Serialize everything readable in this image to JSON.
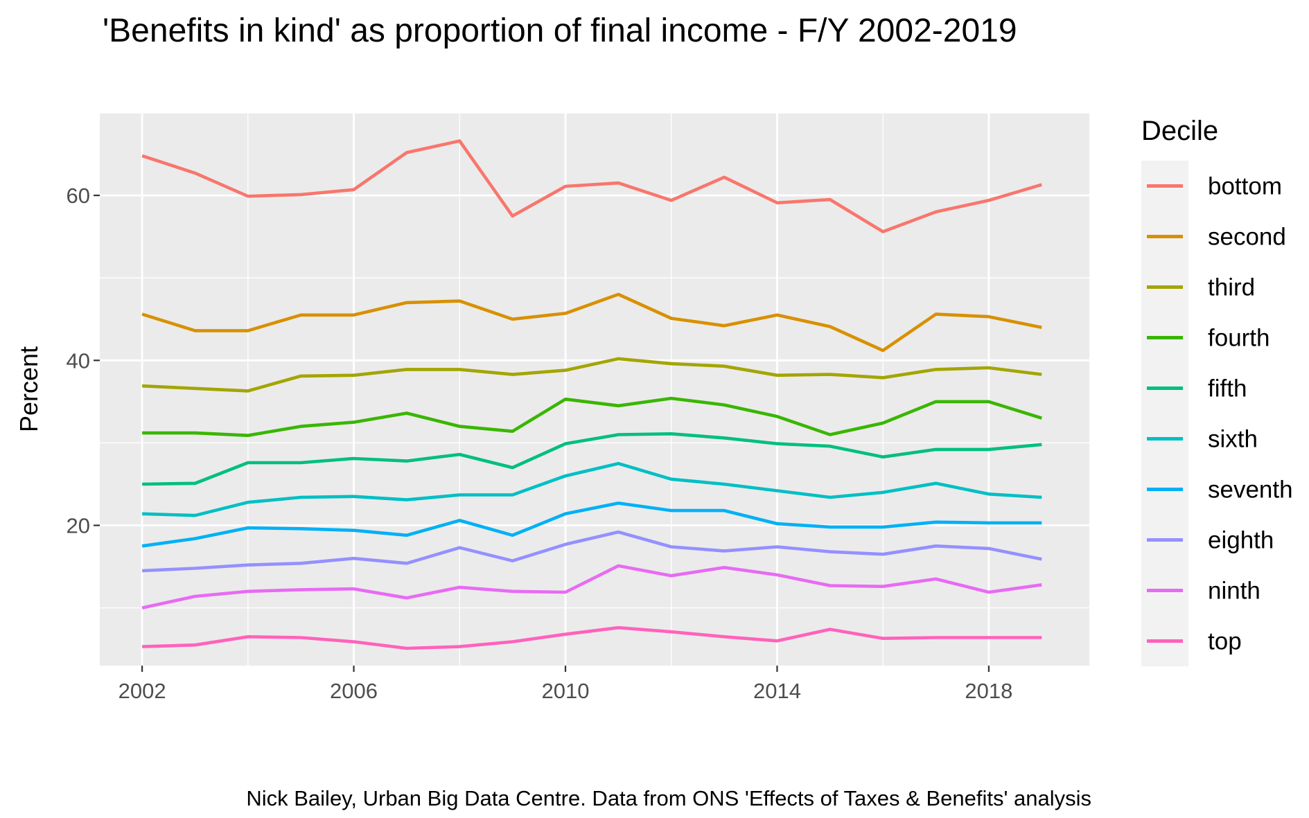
{
  "chart_data": {
    "type": "line",
    "title": "'Benefits in kind' as proportion of final income - F/Y 2002-2019",
    "xlabel": "",
    "ylabel": "Percent",
    "caption": "Nick Bailey, Urban Big Data Centre. Data from ONS 'Effects of Taxes & Benefits' analysis",
    "legend_title": "Decile",
    "legend_position": "right",
    "grid": true,
    "xlim": [
      2001.2,
      2019.9
    ],
    "ylim": [
      3,
      70
    ],
    "x_ticks": [
      2002,
      2006,
      2010,
      2014,
      2018
    ],
    "y_ticks": [
      20,
      40,
      60
    ],
    "x": [
      2002,
      2003,
      2004,
      2005,
      2006,
      2007,
      2008,
      2009,
      2010,
      2011,
      2012,
      2013,
      2014,
      2015,
      2016,
      2017,
      2018,
      2019
    ],
    "series": [
      {
        "name": "bottom",
        "color": "#F8766D",
        "values": [
          64.8,
          62.7,
          59.9,
          60.1,
          60.7,
          65.2,
          66.6,
          57.5,
          61.1,
          61.5,
          59.4,
          62.2,
          59.1,
          59.5,
          55.6,
          58.0,
          59.4,
          61.3
        ]
      },
      {
        "name": "second",
        "color": "#D89000",
        "values": [
          45.6,
          43.6,
          43.6,
          45.5,
          45.5,
          47.0,
          47.2,
          45.0,
          45.7,
          48.0,
          45.1,
          44.2,
          45.5,
          44.1,
          41.2,
          45.6,
          45.3,
          44.0
        ]
      },
      {
        "name": "third",
        "color": "#A3A500",
        "values": [
          36.9,
          36.6,
          36.3,
          38.1,
          38.2,
          38.9,
          38.9,
          38.3,
          38.8,
          40.2,
          39.6,
          39.3,
          38.2,
          38.3,
          37.9,
          38.9,
          39.1,
          38.3
        ]
      },
      {
        "name": "fourth",
        "color": "#39B600",
        "values": [
          31.2,
          31.2,
          30.9,
          32.0,
          32.5,
          33.6,
          32.0,
          31.4,
          35.3,
          34.5,
          35.4,
          34.6,
          33.2,
          31.0,
          32.4,
          35.0,
          35.0,
          33.0
        ]
      },
      {
        "name": "fifth",
        "color": "#00BF7D",
        "values": [
          25.0,
          25.1,
          27.6,
          27.6,
          28.1,
          27.8,
          28.6,
          27.0,
          29.9,
          31.0,
          31.1,
          30.6,
          29.9,
          29.6,
          28.3,
          29.2,
          29.2,
          29.8
        ]
      },
      {
        "name": "sixth",
        "color": "#00BFC4",
        "values": [
          21.4,
          21.2,
          22.8,
          23.4,
          23.5,
          23.1,
          23.7,
          23.7,
          26.0,
          27.5,
          25.6,
          25.0,
          24.2,
          23.4,
          24.0,
          25.1,
          23.8,
          23.4
        ]
      },
      {
        "name": "seventh",
        "color": "#00B0F6",
        "values": [
          17.5,
          18.4,
          19.7,
          19.6,
          19.4,
          18.8,
          20.6,
          18.8,
          21.4,
          22.7,
          21.8,
          21.8,
          20.2,
          19.8,
          19.8,
          20.4,
          20.3,
          20.3
        ]
      },
      {
        "name": "eighth",
        "color": "#9590FF",
        "values": [
          14.5,
          14.8,
          15.2,
          15.4,
          16.0,
          15.4,
          17.3,
          15.7,
          17.7,
          19.2,
          17.4,
          16.9,
          17.4,
          16.8,
          16.5,
          17.5,
          17.2,
          15.9
        ]
      },
      {
        "name": "ninth",
        "color": "#E76BF3",
        "values": [
          10.0,
          11.4,
          12.0,
          12.2,
          12.3,
          11.2,
          12.5,
          12.0,
          11.9,
          15.1,
          13.9,
          14.9,
          14.0,
          12.7,
          12.6,
          13.5,
          11.9,
          12.8
        ]
      },
      {
        "name": "top",
        "color": "#FF62BC",
        "values": [
          5.3,
          5.5,
          6.5,
          6.4,
          5.9,
          5.1,
          5.3,
          5.9,
          6.8,
          7.6,
          7.1,
          6.5,
          6.0,
          7.4,
          6.3,
          6.4,
          6.4,
          6.4
        ]
      }
    ]
  }
}
